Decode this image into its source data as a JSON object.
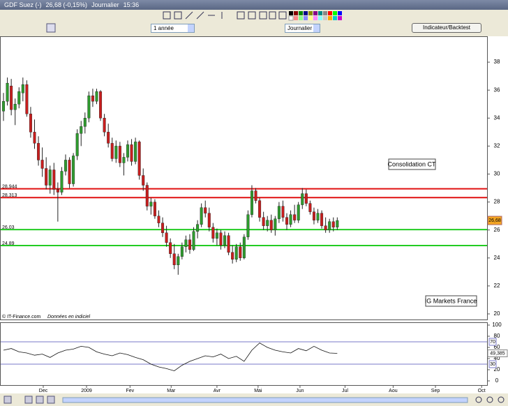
{
  "ui": {
    "title_name": "GDF Suez (-)",
    "title_price": "26,68 (-0,15%)",
    "title_period": "Journalier",
    "title_time": "15:36",
    "range_select": "1 année",
    "period_select": "Journalier",
    "indicator_button": "Indicateur/Backtest",
    "source": "© IT-Finance.com",
    "source_note": "Données en indiciel"
  },
  "chart_data": [
    {
      "type": "candlestick",
      "up_color": "#2e9b2e",
      "down_color": "#c81e1e",
      "xlim": [
        -0.9,
        124.6
      ],
      "ylim": [
        19.6,
        39.85
      ],
      "yticks": [
        20,
        22,
        24,
        26,
        28,
        30,
        32,
        34,
        36,
        38
      ],
      "open": [
        34.5,
        35.2,
        36.3,
        34.6,
        35.0,
        35.8,
        36.4,
        34.3,
        33.0,
        32.2,
        31.0,
        30.4,
        29.2,
        30.3,
        28.9,
        28.7,
        30.2,
        31.0,
        29.3,
        31.3,
        32.9,
        33.4,
        34.0,
        35.6,
        35.2,
        35.9,
        34.0,
        33.0,
        32.2,
        31.1,
        32.0,
        30.8,
        31.2,
        32.1,
        30.9,
        32.3,
        29.9,
        29.2,
        27.7,
        28.0,
        27.0,
        26.5,
        25.8,
        25.1,
        24.3,
        23.5,
        24.1,
        24.8,
        25.3,
        24.6,
        25.9,
        26.4,
        27.6,
        27.2,
        26.2,
        25.4,
        25.8,
        24.9,
        25.6,
        24.4,
        23.9,
        24.8,
        24.0,
        25.5,
        27.1,
        28.8,
        28.1,
        26.9,
        26.3,
        26.7,
        26.0,
        26.8,
        27.7,
        26.9,
        26.4,
        27.1,
        26.7,
        27.8,
        28.6,
        27.9,
        27.3,
        26.7,
        27.2,
        26.3,
        26.0,
        26.6,
        26.2
      ],
      "high": [
        35.8,
        36.9,
        36.8,
        35.4,
        36.2,
        36.9,
        36.7,
        34.8,
        33.9,
        32.7,
        31.9,
        31.2,
        30.6,
        30.8,
        29.4,
        30.5,
        31.4,
        31.2,
        31.5,
        33.2,
        33.8,
        34.4,
        35.9,
        36.1,
        36.1,
        36.0,
        34.3,
        33.6,
        32.6,
        32.4,
        32.3,
        31.5,
        32.4,
        32.5,
        32.6,
        32.4,
        30.4,
        29.4,
        28.3,
        28.2,
        27.4,
        26.9,
        26.3,
        25.4,
        25.0,
        24.3,
        25.1,
        25.6,
        25.7,
        26.2,
        26.7,
        27.9,
        28.1,
        27.6,
        26.5,
        26.1,
        26.0,
        25.9,
        25.8,
        24.9,
        25.0,
        25.1,
        25.7,
        27.4,
        29.2,
        29.0,
        28.3,
        27.3,
        27.0,
        27.1,
        27.0,
        28.0,
        28.1,
        27.2,
        27.4,
        27.8,
        28.0,
        29.0,
        28.9,
        28.1,
        27.6,
        27.5,
        27.4,
        26.9,
        26.8,
        26.9,
        26.9
      ],
      "low": [
        33.8,
        34.9,
        34.2,
        33.5,
        34.7,
        35.2,
        34.1,
        32.6,
        31.8,
        30.6,
        29.8,
        28.9,
        28.6,
        28.5,
        26.6,
        28.5,
        29.9,
        29.0,
        29.1,
        31.0,
        32.0,
        32.9,
        33.7,
        34.8,
        35.0,
        33.8,
        32.7,
        31.9,
        30.9,
        30.8,
        30.5,
        29.9,
        30.9,
        30.6,
        30.7,
        29.6,
        28.8,
        27.4,
        27.1,
        26.8,
        26.2,
        25.5,
        24.8,
        24.0,
        23.2,
        22.8,
        23.9,
        24.4,
        24.3,
        24.5,
        25.4,
        26.2,
        26.9,
        25.9,
        25.1,
        24.9,
        24.6,
        24.7,
        24.2,
        23.6,
        23.7,
        23.8,
        23.9,
        25.3,
        26.9,
        27.9,
        26.6,
        26.0,
        25.9,
        25.8,
        25.6,
        26.5,
        26.6,
        26.0,
        26.2,
        26.5,
        26.5,
        27.5,
        27.7,
        27.1,
        26.4,
        26.5,
        26.1,
        25.8,
        25.8,
        25.9,
        26.0
      ],
      "close": [
        35.2,
        36.5,
        34.6,
        35.0,
        35.9,
        36.4,
        34.3,
        33.0,
        32.2,
        31.0,
        30.4,
        29.2,
        30.3,
        28.9,
        28.7,
        30.2,
        31.0,
        29.3,
        31.3,
        32.9,
        33.4,
        34.0,
        35.6,
        35.2,
        35.9,
        34.0,
        33.0,
        32.2,
        31.1,
        32.0,
        30.8,
        31.2,
        32.1,
        30.9,
        32.3,
        29.9,
        29.2,
        27.7,
        28.0,
        27.0,
        26.5,
        25.8,
        25.1,
        24.3,
        23.5,
        24.1,
        24.8,
        25.3,
        24.6,
        25.9,
        26.4,
        27.6,
        27.2,
        26.2,
        25.4,
        25.8,
        24.9,
        25.6,
        24.4,
        23.9,
        24.8,
        24.0,
        25.5,
        27.1,
        28.8,
        28.1,
        26.9,
        26.3,
        26.7,
        26.0,
        26.8,
        27.7,
        26.9,
        26.4,
        27.1,
        26.7,
        27.8,
        28.6,
        27.9,
        27.3,
        26.7,
        27.2,
        26.3,
        26.0,
        26.6,
        26.2,
        26.68
      ],
      "levels": [
        {
          "value": 28.944,
          "label": "28,944",
          "color": "#e01010"
        },
        {
          "value": 28.313,
          "label": "28,313",
          "color": "#e01010"
        },
        {
          "value": 26.03,
          "label": "26,03",
          "color": "#22cc22"
        },
        {
          "value": 24.89,
          "label": "24,89",
          "color": "#22cc22"
        }
      ],
      "last": {
        "value": 26.68,
        "label": "26,68"
      },
      "annotations": [
        "Consolidation CT",
        "IG Markets France"
      ]
    },
    {
      "type": "line",
      "color": "#111111",
      "level_color": "#7a7ac8",
      "xlim": [
        -0.9,
        124.6
      ],
      "ylim": [
        -7.5,
        105
      ],
      "yticks": [
        0,
        20,
        40,
        60,
        80,
        100
      ],
      "levels": [
        70,
        30
      ],
      "last": {
        "value": 49.385,
        "label": "49,385"
      },
      "x": [
        0,
        2,
        4,
        6,
        8,
        10,
        12,
        14,
        16,
        18,
        20,
        22,
        24,
        26,
        28,
        30,
        32,
        34,
        36,
        38,
        40,
        42,
        44,
        46,
        48,
        50,
        52,
        54,
        56,
        58,
        60,
        62,
        64,
        66,
        68,
        70,
        72,
        74,
        76,
        78,
        80,
        82,
        84,
        86
      ],
      "values": [
        55,
        58,
        52,
        50,
        46,
        48,
        42,
        50,
        55,
        57,
        62,
        60,
        52,
        48,
        45,
        50,
        47,
        42,
        38,
        30,
        25,
        22,
        18,
        28,
        35,
        40,
        45,
        43,
        48,
        40,
        44,
        35,
        55,
        68,
        60,
        55,
        52,
        50,
        58,
        54,
        62,
        55,
        50,
        49.385
      ],
      "xticks": [
        {
          "value": 10.25,
          "label": "Dec"
        },
        {
          "value": 21.4,
          "label": "2009"
        },
        {
          "value": 32.6,
          "label": "Fev"
        },
        {
          "value": 43.2,
          "label": "Mar"
        },
        {
          "value": 55.0,
          "label": "Avr"
        },
        {
          "value": 65.6,
          "label": "Mai"
        },
        {
          "value": 76.4,
          "label": "Jun"
        },
        {
          "value": 88.0,
          "label": "Jul"
        },
        {
          "value": 100.4,
          "label": "Aou"
        },
        {
          "value": 111.3,
          "label": "Sep"
        },
        {
          "value": 123.2,
          "label": "Oct"
        }
      ]
    }
  ]
}
